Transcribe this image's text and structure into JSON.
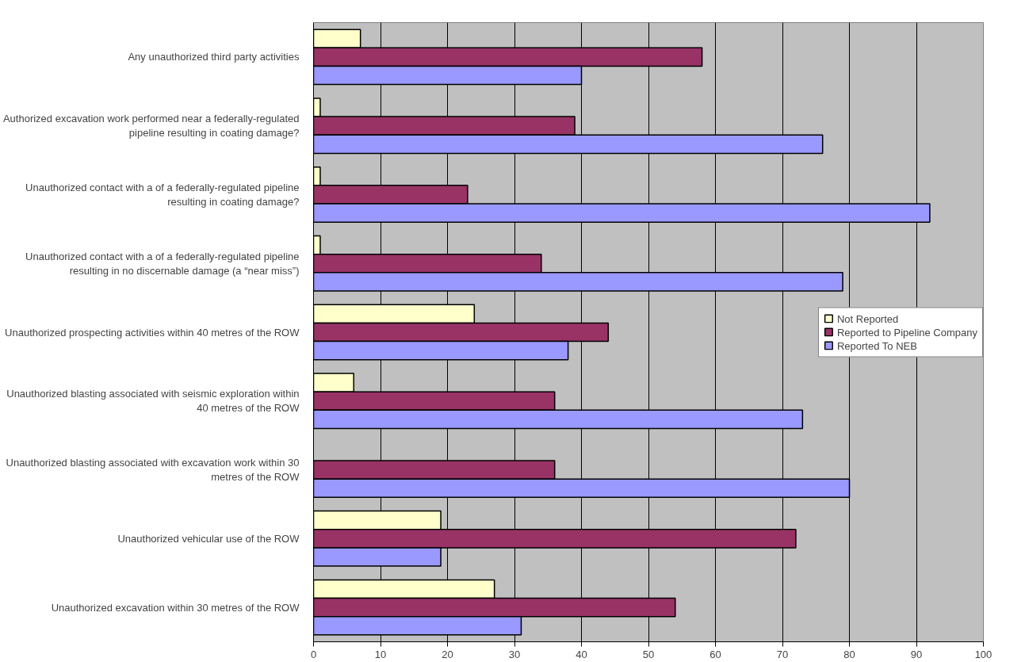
{
  "chart_data": {
    "type": "bar",
    "orientation": "horizontal",
    "categories": [
      "Any unauthorized third party activities",
      "Authorized excavation work performed near a federally-regulated pipeline resulting in coating damage?",
      "Unauthorized contact with a of a federally-regulated pipeline resulting in coating damage?",
      "Unauthorized contact with a of a federally-regulated pipeline resulting in no discernable damage (a “near miss”)",
      "Unauthorized prospecting activities within 40 metres of the ROW",
      "Unauthorized blasting associated with seismic exploration within 40 metres of the ROW",
      "Unauthorized blasting associated with excavation work within 30 metres of the ROW",
      "Unauthorized vehicular use of the ROW",
      "Unauthorized excavation within 30 metres of the ROW"
    ],
    "series": [
      {
        "name": "Not Reported",
        "color": "#ffffcc",
        "values": [
          7,
          1,
          1,
          1,
          24,
          6,
          0,
          19,
          27
        ]
      },
      {
        "name": "Reported to Pipeline Company",
        "color": "#993366",
        "values": [
          58,
          39,
          23,
          34,
          44,
          36,
          36,
          72,
          54
        ]
      },
      {
        "name": "Reported To NEB",
        "color": "#9999ff",
        "values": [
          40,
          76,
          92,
          79,
          38,
          73,
          80,
          19,
          31
        ]
      }
    ],
    "xlim": [
      0,
      100
    ],
    "xticks": [
      0,
      10,
      20,
      30,
      40,
      50,
      60,
      70,
      80,
      90,
      100
    ],
    "grid": "x",
    "legend": "right"
  }
}
